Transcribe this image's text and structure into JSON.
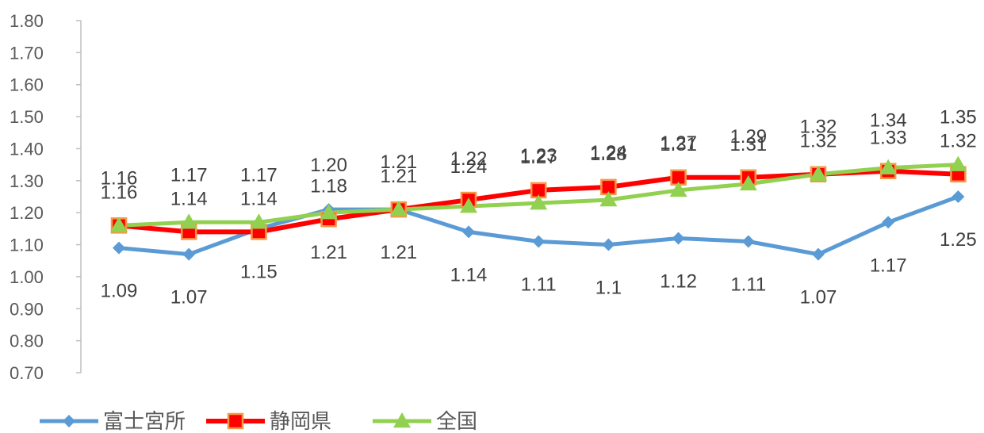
{
  "chart_data": {
    "type": "line",
    "title": "",
    "xlabel": "",
    "ylabel": "",
    "ylim": [
      0.7,
      1.8
    ],
    "ystep": 0.1,
    "yticks": [
      "0.70",
      "0.80",
      "0.90",
      "1.00",
      "1.10",
      "1.20",
      "1.30",
      "1.40",
      "1.50",
      "1.60",
      "1.70",
      "1.80"
    ],
    "grid": false,
    "legend_position": "bottom-left",
    "series": [
      {
        "name": "富士宮所",
        "color": "#5B9BD5",
        "marker": "diamond",
        "values": [
          1.09,
          1.07,
          1.15,
          1.21,
          1.21,
          1.14,
          1.11,
          1.1,
          1.12,
          1.11,
          1.07,
          1.17,
          1.25
        ],
        "labels": [
          "1.09",
          "1.07",
          "1.15",
          "1.21",
          "1.21",
          "1.14",
          "1.11",
          "1.1",
          "1.12",
          "1.11",
          "1.07",
          "1.17",
          "1.25"
        ]
      },
      {
        "name": "静岡県",
        "color": "#FF0000",
        "marker": "square",
        "values": [
          1.16,
          1.14,
          1.14,
          1.18,
          1.21,
          1.24,
          1.27,
          1.28,
          1.31,
          1.31,
          1.32,
          1.33,
          1.32
        ],
        "labels": [
          "1.16",
          "1.14",
          "1.14",
          "1.18",
          "1.21",
          "1.24",
          "1.27",
          "1.28",
          "1.31",
          "1.31",
          "1.32",
          "1.33",
          "1.32"
        ]
      },
      {
        "name": "全国",
        "color": "#92D050",
        "marker": "triangle",
        "values": [
          1.16,
          1.17,
          1.17,
          1.2,
          1.21,
          1.22,
          1.23,
          1.24,
          1.27,
          1.29,
          1.32,
          1.34,
          1.35
        ],
        "labels": [
          "1.16",
          "1.17",
          "1.17",
          "1.20",
          "1.21",
          "1.22",
          "1.23",
          "1.24",
          "1.27",
          "1.29",
          "1.32",
          "1.34",
          "1.35"
        ]
      }
    ]
  }
}
